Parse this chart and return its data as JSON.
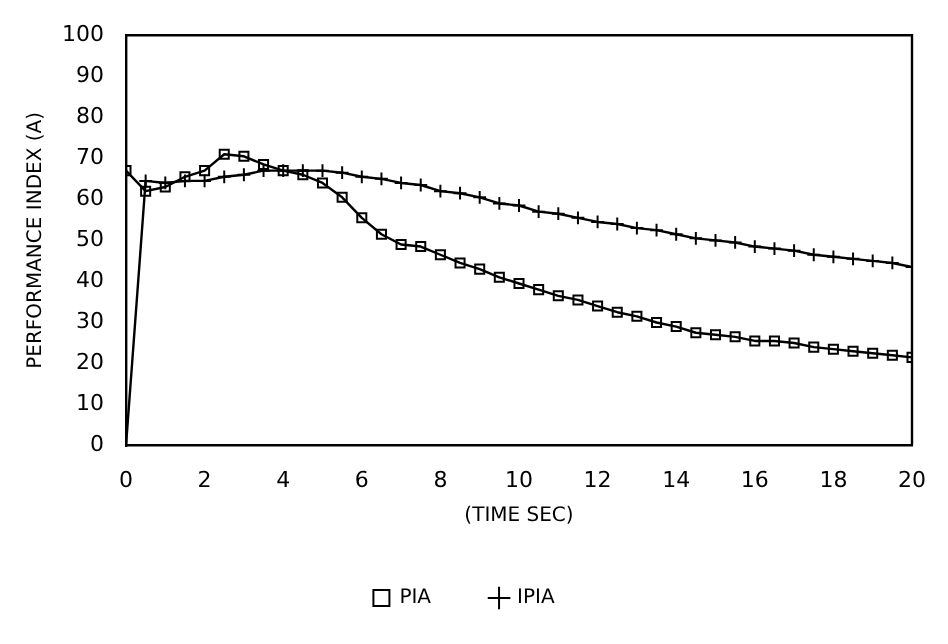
{
  "chart_data": {
    "type": "line",
    "xlabel": "(TIME SEC)",
    "ylabel": "PERFORMANCE INDEX (A)",
    "xlim": [
      0,
      20
    ],
    "xticks": [
      0,
      2,
      4,
      6,
      8,
      10,
      12,
      14,
      16,
      18,
      20
    ],
    "ylim": [
      0,
      100
    ],
    "yticks": [
      0,
      10,
      20,
      30,
      40,
      50,
      60,
      70,
      80,
      90,
      100
    ],
    "grid": false,
    "legend": "bottom",
    "line_style": "solid",
    "series": [
      {
        "name": "PIA",
        "color": "#000000",
        "marker": "square",
        "x": [
          0,
          0.5,
          1,
          1.5,
          2,
          2.5,
          3,
          3.5,
          4,
          4.5,
          5,
          5.5,
          6,
          6.5,
          7,
          7.5,
          8,
          8.5,
          9,
          9.5,
          10,
          10.5,
          11,
          11.5,
          12,
          12.5,
          13,
          13.5,
          14,
          14.5,
          15,
          15.5,
          16,
          16.5,
          17,
          17.5,
          18,
          18.5,
          19,
          19.5,
          20
        ],
        "values": [
          67,
          62,
          63,
          65.5,
          67,
          71,
          70.5,
          68.5,
          67,
          66,
          64,
          60.5,
          55.5,
          51.5,
          49,
          48.5,
          46.5,
          44.5,
          43,
          41,
          39.5,
          38,
          36.5,
          35.5,
          34,
          32.5,
          31.5,
          30,
          29,
          27.5,
          27,
          26.5,
          25.5,
          25.5,
          25,
          24,
          23.5,
          23,
          22.5,
          22,
          21.5
        ]
      },
      {
        "name": "IPIA",
        "color": "#000000",
        "marker": "cross",
        "x": [
          0,
          0.5,
          1,
          1.5,
          2,
          2.5,
          3,
          3.5,
          4,
          4.5,
          5,
          5.5,
          6,
          6.5,
          7,
          7.5,
          8,
          8.5,
          9,
          9.5,
          10,
          10.5,
          11,
          11.5,
          12,
          12.5,
          13,
          13.5,
          14,
          14.5,
          15,
          15.5,
          16,
          16.5,
          17,
          17.5,
          18,
          18.5,
          19,
          19.5,
          20
        ],
        "values": [
          0,
          64.5,
          64,
          64.5,
          64.5,
          65.5,
          66,
          67,
          67,
          67,
          67,
          66.5,
          65.5,
          65,
          64,
          63.5,
          62,
          61.5,
          60.5,
          59,
          58.5,
          57,
          56.5,
          55.5,
          54.5,
          54,
          53,
          52.5,
          51.5,
          50.5,
          50,
          49.5,
          48.5,
          48,
          47.5,
          46.5,
          46,
          45.5,
          45,
          44.5,
          43.5
        ]
      }
    ]
  }
}
